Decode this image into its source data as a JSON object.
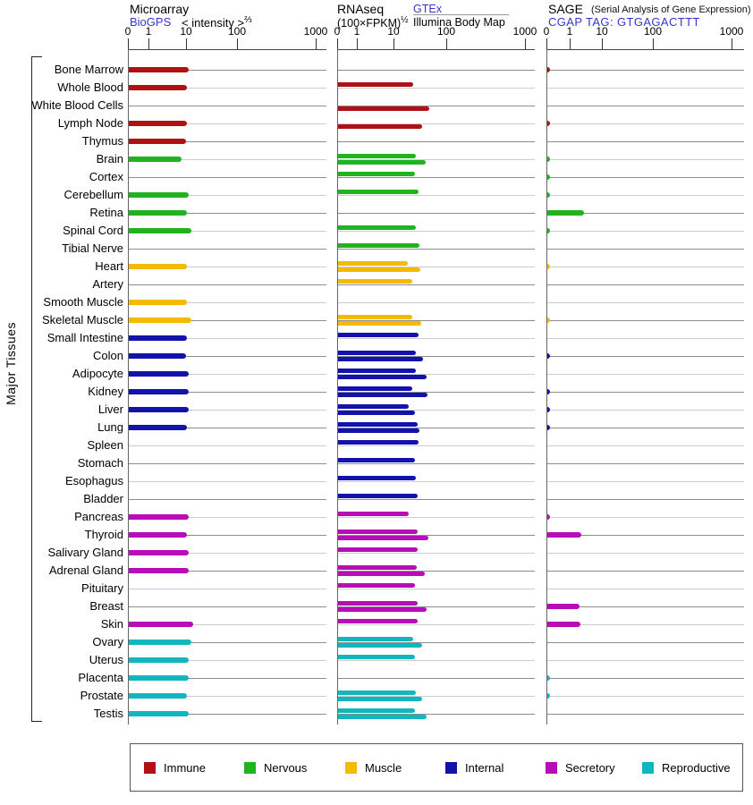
{
  "side_label": "Major Tissues",
  "axis_tick_labels": [
    "0",
    "1",
    "10",
    "100",
    "1000"
  ],
  "header": {
    "microarray": {
      "title": "Microarray",
      "link": "BioGPS",
      "formula": "< intensity >",
      "exponent": "⅔"
    },
    "rnaseq": {
      "title": "RNAseq",
      "formula": "(100×FPKM)",
      "exponent": "½",
      "link": "GTEx",
      "sublabel": "Illumina Body Map"
    },
    "sage": {
      "title": "SAGE",
      "note": "(Serial Analysis of Gene Expression)",
      "link": "CGAP TAG: GTGAGACTTT"
    }
  },
  "colors": {
    "immune": "#b11015",
    "nervous": "#1fb41f",
    "muscle": "#f3ba00",
    "internal": "#1212ad",
    "secretory": "#b90cb9",
    "reproductive": "#12b7bd",
    "link_blue": "#3535cd",
    "track_dark": "#8c8c8c",
    "track_light": "#cdcdcd",
    "axis": "#444444"
  },
  "legend": [
    {
      "label": "Immune",
      "group": "immune"
    },
    {
      "label": "Nervous",
      "group": "nervous"
    },
    {
      "label": "Muscle",
      "group": "muscle"
    },
    {
      "label": "Internal",
      "group": "internal"
    },
    {
      "label": "Secretory",
      "group": "secretory"
    },
    {
      "label": "Reproductive",
      "group": "reproductive"
    }
  ],
  "chart_data": {
    "type": "bar",
    "orientation": "horizontal",
    "scale": "log-like; ticks 0,1,10,100,1000; zero values drawn as tiny tick at axis",
    "tick_values": [
      0,
      1,
      10,
      100,
      1000
    ],
    "categories": [
      "Bone Marrow",
      "Whole Blood",
      "White Blood Cells",
      "Lymph Node",
      "Thymus",
      "Brain",
      "Cortex",
      "Cerebellum",
      "Retina",
      "Spinal Cord",
      "Tibial Nerve",
      "Heart",
      "Artery",
      "Smooth Muscle",
      "Skeletal Muscle",
      "Small Intestine",
      "Colon",
      "Adipocyte",
      "Kidney",
      "Liver",
      "Lung",
      "Spleen",
      "Stomach",
      "Esophagus",
      "Bladder",
      "Pancreas",
      "Thyroid",
      "Salivary Gland",
      "Adrenal Gland",
      "Pituitary",
      "Breast",
      "Skin",
      "Ovary",
      "Uterus",
      "Placenta",
      "Prostate",
      "Testis"
    ],
    "groups": [
      "immune",
      "immune",
      "immune",
      "immune",
      "immune",
      "nervous",
      "nervous",
      "nervous",
      "nervous",
      "nervous",
      "nervous",
      "muscle",
      "muscle",
      "muscle",
      "muscle",
      "internal",
      "internal",
      "internal",
      "internal",
      "internal",
      "internal",
      "internal",
      "internal",
      "internal",
      "internal",
      "secretory",
      "secretory",
      "secretory",
      "secretory",
      "secretory",
      "secretory",
      "secretory",
      "reproductive",
      "reproductive",
      "reproductive",
      "reproductive",
      "reproductive"
    ],
    "series": [
      {
        "name": "Microarray BioGPS",
        "panel": "microarray",
        "values": [
          11,
          10,
          null,
          10,
          9.5,
          7,
          null,
          11,
          10,
          12,
          null,
          10,
          null,
          10,
          12,
          10,
          9.5,
          11,
          11,
          11,
          10,
          null,
          null,
          null,
          null,
          11,
          10,
          11,
          11,
          null,
          null,
          13,
          12,
          11,
          11,
          10,
          11
        ]
      },
      {
        "name": "RNAseq GTEx",
        "panel": "rnaseq",
        "values": [
          null,
          23,
          null,
          null,
          null,
          26,
          25,
          29,
          null,
          26,
          30,
          18,
          22,
          null,
          22,
          29,
          26,
          26,
          22,
          19,
          28,
          29,
          25,
          26,
          28,
          19,
          28,
          28,
          27,
          25,
          28,
          28,
          23,
          25,
          null,
          26,
          25
        ]
      },
      {
        "name": "RNAseq Illumina Body Map",
        "panel": "rnaseq",
        "values": [
          null,
          null,
          46,
          34,
          null,
          39,
          null,
          null,
          null,
          null,
          null,
          31,
          null,
          null,
          32,
          null,
          35,
          41,
          42,
          25,
          30,
          null,
          null,
          null,
          null,
          null,
          44,
          null,
          38,
          null,
          41,
          null,
          33,
          null,
          null,
          33,
          40
        ]
      },
      {
        "name": "SAGE CGAP",
        "panel": "sage",
        "values": [
          0,
          null,
          null,
          0,
          null,
          0,
          0,
          0,
          2.6,
          0,
          null,
          0,
          null,
          null,
          0,
          null,
          0,
          null,
          0,
          0,
          0,
          null,
          null,
          null,
          null,
          0,
          2.2,
          null,
          null,
          null,
          1.9,
          2.0,
          null,
          null,
          0,
          0,
          null
        ]
      }
    ]
  }
}
